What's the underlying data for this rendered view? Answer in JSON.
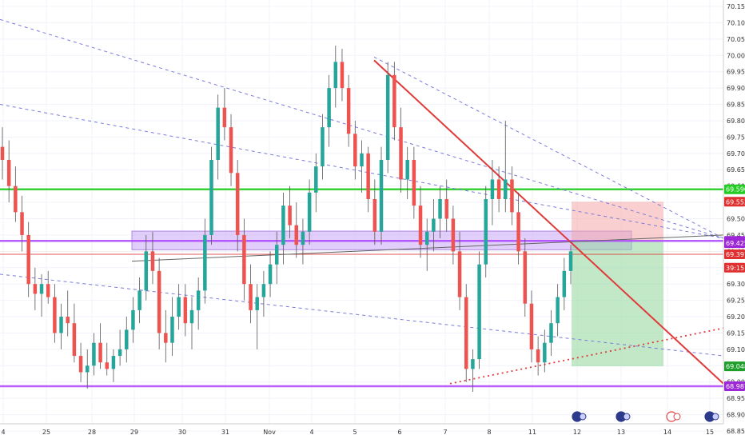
{
  "chart_data": {
    "type": "candlestick",
    "ylim": [
      68.85,
      70.15
    ],
    "y_ticks": [
      "70.150",
      "70.100",
      "70.050",
      "70.000",
      "69.950",
      "69.900",
      "69.850",
      "69.800",
      "69.750",
      "69.700",
      "69.650",
      "69.600",
      "69.550",
      "69.500",
      "69.450",
      "69.400",
      "69.350",
      "69.300",
      "69.250",
      "69.200",
      "69.150",
      "69.100",
      "69.050",
      "69.000",
      "68.950",
      "68.900",
      "68.850"
    ],
    "x_ticks": [
      "4",
      "25",
      "28",
      "29",
      "30",
      "31",
      "Nov",
      "4",
      "5",
      "6",
      "7",
      "8",
      "11",
      "12",
      "13",
      "14",
      "15"
    ],
    "candles_ohlc": [
      [
        69.72,
        69.78,
        69.62,
        69.68
      ],
      [
        69.68,
        69.74,
        69.55,
        69.6
      ],
      [
        69.6,
        69.66,
        69.49,
        69.52
      ],
      [
        69.52,
        69.57,
        69.4,
        69.45
      ],
      [
        69.45,
        69.49,
        69.26,
        69.3
      ],
      [
        69.3,
        69.35,
        69.22,
        69.27
      ],
      [
        69.27,
        69.33,
        69.2,
        69.3
      ],
      [
        69.3,
        69.34,
        69.24,
        69.26
      ],
      [
        69.26,
        69.3,
        69.12,
        69.15
      ],
      [
        69.15,
        69.24,
        69.1,
        69.2
      ],
      [
        69.2,
        69.28,
        69.14,
        69.18
      ],
      [
        69.18,
        69.24,
        69.06,
        69.08
      ],
      [
        69.08,
        69.12,
        69.0,
        69.03
      ],
      [
        69.03,
        69.1,
        68.98,
        69.05
      ],
      [
        69.05,
        69.15,
        69.02,
        69.12
      ],
      [
        69.12,
        69.18,
        69.04,
        69.06
      ],
      [
        69.06,
        69.12,
        69.02,
        69.04
      ],
      [
        69.04,
        69.1,
        69.0,
        69.08
      ],
      [
        69.08,
        69.16,
        69.05,
        69.1
      ],
      [
        69.1,
        69.2,
        69.06,
        69.16
      ],
      [
        69.16,
        69.26,
        69.12,
        69.22
      ],
      [
        69.22,
        69.32,
        69.18,
        69.28
      ],
      [
        69.28,
        69.45,
        69.25,
        69.4
      ],
      [
        69.4,
        69.46,
        69.3,
        69.34
      ],
      [
        69.34,
        69.38,
        69.1,
        69.15
      ],
      [
        69.15,
        69.22,
        69.06,
        69.12
      ],
      [
        69.12,
        69.26,
        69.08,
        69.2
      ],
      [
        69.2,
        69.3,
        69.16,
        69.26
      ],
      [
        69.26,
        69.3,
        69.14,
        69.18
      ],
      [
        69.18,
        69.26,
        69.1,
        69.22
      ],
      [
        69.22,
        69.32,
        69.16,
        69.28
      ],
      [
        69.28,
        69.5,
        69.24,
        69.45
      ],
      [
        69.45,
        69.72,
        69.42,
        69.68
      ],
      [
        69.68,
        69.88,
        69.62,
        69.84
      ],
      [
        69.84,
        69.9,
        69.74,
        69.78
      ],
      [
        69.78,
        69.82,
        69.6,
        69.64
      ],
      [
        69.64,
        69.68,
        69.4,
        69.45
      ],
      [
        69.45,
        69.5,
        69.25,
        69.3
      ],
      [
        69.3,
        69.36,
        69.18,
        69.22
      ],
      [
        69.22,
        69.3,
        69.1,
        69.26
      ],
      [
        69.26,
        69.34,
        69.2,
        69.3
      ],
      [
        69.3,
        69.4,
        69.26,
        69.36
      ],
      [
        69.36,
        69.46,
        69.3,
        69.42
      ],
      [
        69.42,
        69.58,
        69.36,
        69.54
      ],
      [
        69.54,
        69.6,
        69.44,
        69.48
      ],
      [
        69.48,
        69.55,
        69.38,
        69.42
      ],
      [
        69.42,
        69.5,
        69.36,
        69.46
      ],
      [
        69.46,
        69.62,
        69.42,
        69.58
      ],
      [
        69.58,
        69.7,
        69.52,
        69.66
      ],
      [
        69.66,
        69.82,
        69.62,
        69.78
      ],
      [
        69.78,
        69.94,
        69.72,
        69.9
      ],
      [
        69.9,
        70.03,
        69.84,
        69.98
      ],
      [
        69.98,
        70.02,
        69.86,
        69.9
      ],
      [
        69.9,
        69.94,
        69.72,
        69.76
      ],
      [
        69.76,
        69.8,
        69.62,
        69.66
      ],
      [
        69.66,
        69.74,
        69.58,
        69.7
      ],
      [
        69.7,
        69.72,
        69.52,
        69.56
      ],
      [
        69.56,
        69.62,
        69.42,
        69.46
      ],
      [
        69.46,
        69.72,
        69.42,
        69.68
      ],
      [
        69.68,
        69.98,
        69.64,
        69.94
      ],
      [
        69.94,
        69.98,
        69.74,
        69.78
      ],
      [
        69.78,
        69.84,
        69.58,
        69.62
      ],
      [
        69.62,
        69.72,
        69.56,
        69.68
      ],
      [
        69.68,
        69.72,
        69.5,
        69.54
      ],
      [
        69.54,
        69.6,
        69.38,
        69.42
      ],
      [
        69.42,
        69.5,
        69.34,
        69.46
      ],
      [
        69.46,
        69.56,
        69.4,
        69.5
      ],
      [
        69.5,
        69.6,
        69.44,
        69.56
      ],
      [
        69.56,
        69.62,
        69.46,
        69.5
      ],
      [
        69.5,
        69.54,
        69.36,
        69.4
      ],
      [
        69.4,
        69.46,
        69.22,
        69.26
      ],
      [
        69.26,
        69.3,
        69.0,
        69.04
      ],
      [
        69.04,
        69.1,
        68.97,
        69.07
      ],
      [
        69.07,
        69.4,
        69.04,
        69.36
      ],
      [
        69.36,
        69.6,
        69.32,
        69.56
      ],
      [
        69.56,
        69.68,
        69.48,
        69.62
      ],
      [
        69.62,
        69.66,
        69.52,
        69.56
      ],
      [
        69.56,
        69.8,
        69.52,
        69.62
      ],
      [
        69.62,
        69.66,
        69.48,
        69.52
      ],
      [
        69.52,
        69.58,
        69.36,
        69.4
      ],
      [
        69.4,
        69.44,
        69.2,
        69.24
      ],
      [
        69.24,
        69.28,
        69.06,
        69.1
      ],
      [
        69.1,
        69.14,
        69.02,
        69.06
      ],
      [
        69.06,
        69.16,
        69.03,
        69.12
      ],
      [
        69.12,
        69.22,
        69.08,
        69.18
      ],
      [
        69.18,
        69.3,
        69.14,
        69.26
      ],
      [
        69.26,
        69.38,
        69.22,
        69.34
      ],
      [
        69.34,
        69.42,
        69.3,
        69.4
      ]
    ],
    "zones": [
      {
        "name": "resistance-zone",
        "y_range": [
          69.405,
          69.462
        ],
        "color": "#c9a6f5"
      },
      {
        "name": "stop-zone",
        "y_range": [
          69.432,
          69.552
        ],
        "color": "#f4a7a7"
      },
      {
        "name": "target-zone",
        "y_range": [
          69.048,
          69.432
        ],
        "color": "#8fd69a"
      }
    ],
    "levels": [
      {
        "name": "green-level",
        "value": 69.59,
        "color": "#22cc22"
      },
      {
        "name": "upper-purple-level",
        "value": 69.432,
        "color": "#b04cff"
      },
      {
        "name": "lower-purple-level",
        "value": 68.987,
        "color": "#b04cff"
      },
      {
        "name": "entry-level",
        "value": 69.391,
        "color": "#e04040"
      }
    ],
    "price_labels": [
      {
        "text": "69.590",
        "value": 69.59,
        "color": "#22cc22"
      },
      {
        "text": "69.552",
        "value": 69.552,
        "color": "#e03030"
      },
      {
        "text": "69.432",
        "value": 69.432,
        "color": "#9c27d6"
      },
      {
        "text": "69.425",
        "value": 69.425,
        "color": "#9c27d6"
      },
      {
        "text": "69.391",
        "value": 69.391,
        "color": "#e03030"
      },
      {
        "text": "39:15",
        "value": 69.35,
        "color": "#e03030"
      },
      {
        "text": "69.048",
        "value": 69.048,
        "color": "#1f9e2c"
      },
      {
        "text": "68.987",
        "value": 68.987,
        "color": "#9c27d6"
      }
    ],
    "colors": {
      "up": "#26a69a",
      "down": "#ef5350",
      "background": "#ffffff",
      "grid": "#f0f3fa"
    },
    "grid": true,
    "icons": [
      "earnings-flag-icon",
      "earnings-flag-icon",
      "dividend-icon",
      "earnings-flag-icon"
    ]
  }
}
